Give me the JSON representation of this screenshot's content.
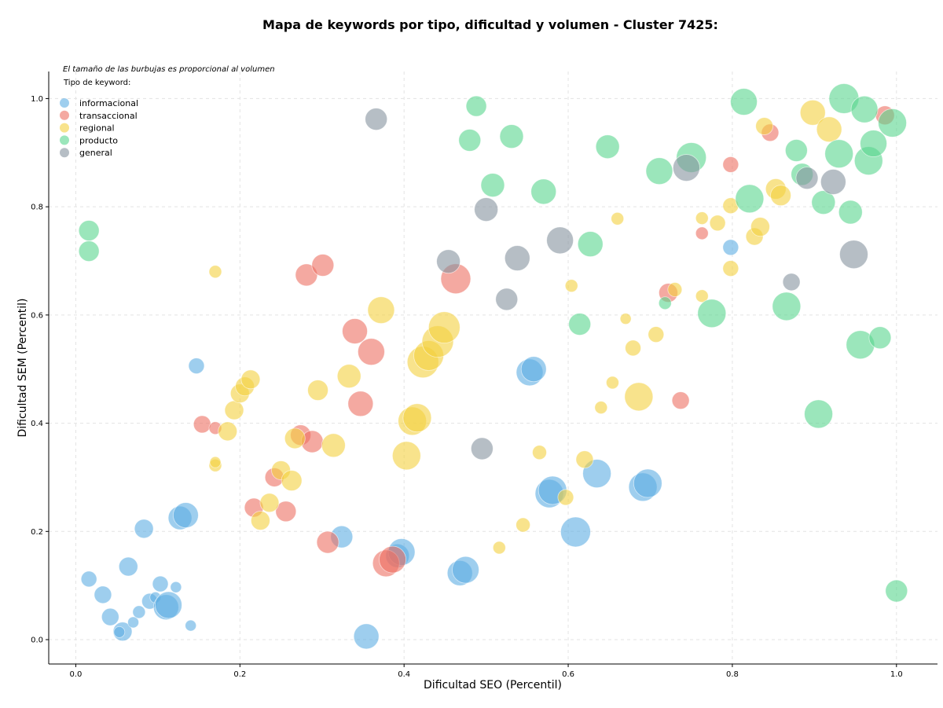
{
  "chart_data": {
    "type": "scatter",
    "title": "Mapa de keywords por tipo, dificultad y volumen - Cluster 7425:",
    "xlabel": "Dificultad SEO (Percentil)",
    "ylabel": "Dificultad SEM (Percentil)",
    "xlim": [
      -0.033,
      1.05
    ],
    "ylim": [
      -0.045,
      1.05
    ],
    "xticks": [
      0.0,
      0.2,
      0.4,
      0.6,
      0.8,
      1.0
    ],
    "yticks": [
      0.0,
      0.2,
      0.4,
      0.6,
      0.8,
      1.0
    ],
    "xtick_labels": [
      "0.0",
      "0.2",
      "0.4",
      "0.6",
      "0.8",
      "1.0"
    ],
    "ytick_labels": [
      "0.0",
      "0.2",
      "0.4",
      "0.6",
      "0.8",
      "1.0"
    ],
    "grid": true,
    "note": "El tamaño de las burbujas es proporcional al volumen",
    "legend": {
      "title": "Tipo de keyword:",
      "position": "top-left"
    },
    "series": [
      {
        "name": "informacional",
        "color": "#5dade2",
        "points": [
          [
            0.016,
            0.112,
            10
          ],
          [
            0.042,
            0.042,
            11
          ],
          [
            0.033,
            0.083,
            11
          ],
          [
            0.057,
            0.015,
            12
          ],
          [
            0.053,
            0.014,
            7
          ],
          [
            0.07,
            0.032,
            7
          ],
          [
            0.077,
            0.051,
            8
          ],
          [
            0.064,
            0.135,
            12
          ],
          [
            0.083,
            0.205,
            12
          ],
          [
            0.09,
            0.071,
            10
          ],
          [
            0.097,
            0.078,
            7
          ],
          [
            0.103,
            0.103,
            10
          ],
          [
            0.11,
            0.06,
            16
          ],
          [
            0.113,
            0.064,
            17
          ],
          [
            0.122,
            0.097,
            7
          ],
          [
            0.14,
            0.026,
            7
          ],
          [
            0.127,
            0.225,
            15
          ],
          [
            0.134,
            0.23,
            16
          ],
          [
            0.147,
            0.506,
            10
          ],
          [
            0.324,
            0.19,
            14
          ],
          [
            0.354,
            0.006,
            16
          ],
          [
            0.392,
            0.155,
            15
          ],
          [
            0.397,
            0.162,
            17
          ],
          [
            0.468,
            0.123,
            16
          ],
          [
            0.475,
            0.129,
            17
          ],
          [
            0.553,
            0.494,
            17
          ],
          [
            0.558,
            0.5,
            16
          ],
          [
            0.577,
            0.27,
            18
          ],
          [
            0.581,
            0.276,
            18
          ],
          [
            0.609,
            0.199,
            19
          ],
          [
            0.635,
            0.307,
            18
          ],
          [
            0.691,
            0.282,
            18
          ],
          [
            0.697,
            0.289,
            18
          ],
          [
            0.798,
            0.725,
            10
          ]
        ]
      },
      {
        "name": "transaccional",
        "color": "#ec7063",
        "points": [
          [
            0.154,
            0.398,
            11
          ],
          [
            0.17,
            0.391,
            8
          ],
          [
            0.217,
            0.244,
            12
          ],
          [
            0.242,
            0.3,
            12
          ],
          [
            0.256,
            0.237,
            13
          ],
          [
            0.274,
            0.378,
            13
          ],
          [
            0.288,
            0.366,
            14
          ],
          [
            0.281,
            0.674,
            14
          ],
          [
            0.301,
            0.692,
            14
          ],
          [
            0.307,
            0.18,
            14
          ],
          [
            0.34,
            0.57,
            16
          ],
          [
            0.347,
            0.436,
            16
          ],
          [
            0.36,
            0.532,
            17
          ],
          [
            0.378,
            0.141,
            17
          ],
          [
            0.386,
            0.148,
            17
          ],
          [
            0.463,
            0.667,
            19
          ],
          [
            0.722,
            0.641,
            12
          ],
          [
            0.737,
            0.442,
            11
          ],
          [
            0.763,
            0.751,
            8
          ],
          [
            0.798,
            0.878,
            10
          ],
          [
            0.846,
            0.937,
            11
          ],
          [
            0.986,
            0.969,
            12
          ]
        ]
      },
      {
        "name": "regional",
        "color": "#f4d03f",
        "points": [
          [
            0.17,
            0.68,
            8
          ],
          [
            0.17,
            0.322,
            8
          ],
          [
            0.17,
            0.328,
            7
          ],
          [
            0.185,
            0.385,
            12
          ],
          [
            0.193,
            0.424,
            12
          ],
          [
            0.2,
            0.455,
            12
          ],
          [
            0.206,
            0.468,
            12
          ],
          [
            0.213,
            0.481,
            12
          ],
          [
            0.225,
            0.22,
            12
          ],
          [
            0.236,
            0.253,
            12
          ],
          [
            0.25,
            0.313,
            12
          ],
          [
            0.263,
            0.294,
            13
          ],
          [
            0.267,
            0.372,
            13
          ],
          [
            0.295,
            0.461,
            13
          ],
          [
            0.314,
            0.359,
            15
          ],
          [
            0.333,
            0.487,
            15
          ],
          [
            0.372,
            0.609,
            17
          ],
          [
            0.403,
            0.34,
            18
          ],
          [
            0.41,
            0.404,
            18
          ],
          [
            0.416,
            0.41,
            18
          ],
          [
            0.423,
            0.513,
            20
          ],
          [
            0.43,
            0.525,
            19
          ],
          [
            0.441,
            0.551,
            20
          ],
          [
            0.449,
            0.577,
            20
          ],
          [
            0.516,
            0.17,
            8
          ],
          [
            0.545,
            0.212,
            9
          ],
          [
            0.565,
            0.346,
            9
          ],
          [
            0.597,
            0.263,
            10
          ],
          [
            0.604,
            0.654,
            8
          ],
          [
            0.62,
            0.333,
            11
          ],
          [
            0.64,
            0.429,
            8
          ],
          [
            0.654,
            0.475,
            8
          ],
          [
            0.66,
            0.778,
            8
          ],
          [
            0.67,
            0.593,
            7
          ],
          [
            0.679,
            0.539,
            10
          ],
          [
            0.686,
            0.449,
            18
          ],
          [
            0.707,
            0.564,
            10
          ],
          [
            0.73,
            0.647,
            9
          ],
          [
            0.763,
            0.635,
            8
          ],
          [
            0.763,
            0.779,
            8
          ],
          [
            0.782,
            0.77,
            10
          ],
          [
            0.798,
            0.686,
            10
          ],
          [
            0.798,
            0.802,
            10
          ],
          [
            0.827,
            0.745,
            11
          ],
          [
            0.834,
            0.763,
            12
          ],
          [
            0.839,
            0.949,
            11
          ],
          [
            0.853,
            0.833,
            13
          ],
          [
            0.859,
            0.821,
            13
          ],
          [
            0.898,
            0.974,
            16
          ],
          [
            0.918,
            0.943,
            16
          ]
        ]
      },
      {
        "name": "producto",
        "color": "#58d68d",
        "points": [
          [
            0.016,
            0.756,
            13
          ],
          [
            0.016,
            0.718,
            13
          ],
          [
            0.488,
            0.986,
            13
          ],
          [
            0.48,
            0.923,
            14
          ],
          [
            0.531,
            0.93,
            15
          ],
          [
            0.508,
            0.84,
            15
          ],
          [
            0.57,
            0.828,
            16
          ],
          [
            0.614,
            0.583,
            14
          ],
          [
            0.627,
            0.731,
            16
          ],
          [
            0.648,
            0.911,
            15
          ],
          [
            0.711,
            0.866,
            17
          ],
          [
            0.718,
            0.622,
            8
          ],
          [
            0.75,
            0.891,
            19
          ],
          [
            0.775,
            0.603,
            18
          ],
          [
            0.814,
            0.994,
            17
          ],
          [
            0.821,
            0.815,
            18
          ],
          [
            0.866,
            0.616,
            18
          ],
          [
            0.878,
            0.904,
            14
          ],
          [
            0.885,
            0.86,
            14
          ],
          [
            0.905,
            0.417,
            18
          ],
          [
            0.911,
            0.808,
            15
          ],
          [
            0.93,
            0.898,
            18
          ],
          [
            0.936,
            1.0,
            19
          ],
          [
            0.944,
            0.79,
            15
          ],
          [
            0.956,
            0.545,
            18
          ],
          [
            0.961,
            0.98,
            17
          ],
          [
            0.966,
            0.885,
            18
          ],
          [
            0.972,
            0.917,
            17
          ],
          [
            0.98,
            0.558,
            14
          ],
          [
            0.995,
            0.955,
            18
          ],
          [
            1.0,
            0.09,
            14
          ]
        ]
      },
      {
        "name": "general",
        "color": "#85929e",
        "points": [
          [
            0.366,
            0.962,
            14
          ],
          [
            0.454,
            0.699,
            15
          ],
          [
            0.5,
            0.795,
            15
          ],
          [
            0.495,
            0.353,
            14
          ],
          [
            0.525,
            0.629,
            14
          ],
          [
            0.538,
            0.705,
            16
          ],
          [
            0.59,
            0.738,
            17
          ],
          [
            0.744,
            0.872,
            17
          ],
          [
            0.872,
            0.661,
            11
          ],
          [
            0.891,
            0.853,
            14
          ],
          [
            0.923,
            0.846,
            16
          ],
          [
            0.948,
            0.712,
            18
          ]
        ]
      }
    ]
  }
}
